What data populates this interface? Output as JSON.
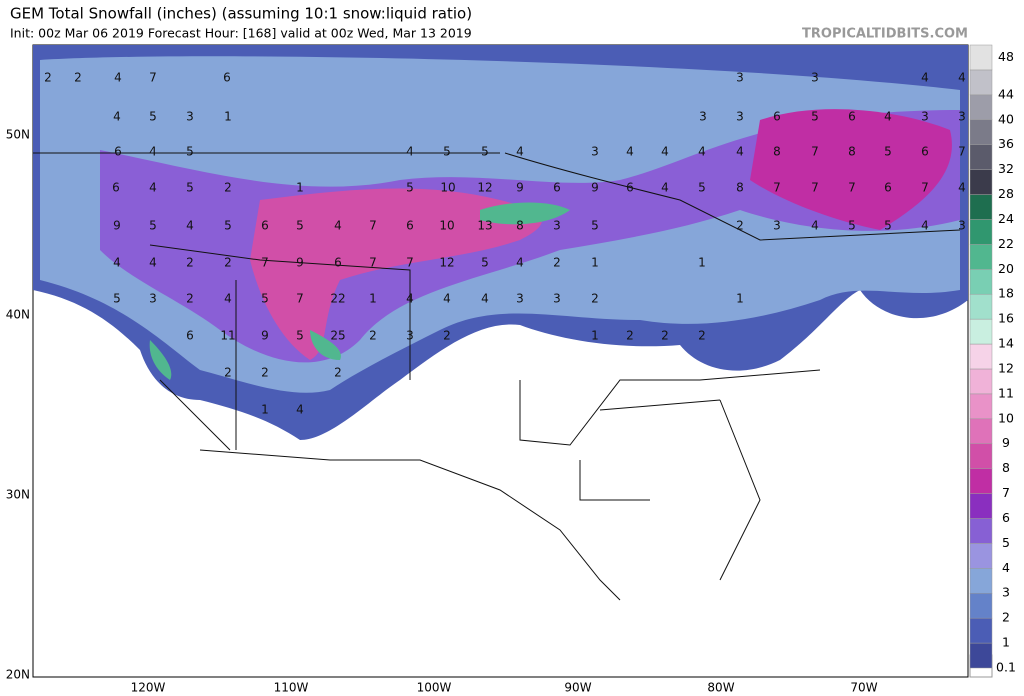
{
  "header": {
    "title": "GEM Total Snowfall (inches) (assuming 10:1 snow:liquid ratio)",
    "subtitle": "Init: 00z Mar 06 2019   Forecast Hour: [168]   valid at 00z Wed, Mar 13 2019",
    "brand": "TROPICALTIDBITS.COM"
  },
  "map": {
    "lat_labels": [
      "50N",
      "40N",
      "30N",
      "20N"
    ],
    "lon_labels": [
      "120W",
      "110W",
      "100W",
      "90W",
      "80W",
      "70W"
    ],
    "snowfall_labels": [
      [
        2,
        2,
        4,
        7,
        6,
        3,
        3,
        4,
        4
      ],
      [
        4,
        5,
        3,
        1,
        3,
        3,
        6,
        5,
        6,
        4,
        3,
        3
      ],
      [
        6,
        4,
        5,
        4,
        5,
        5,
        4,
        3,
        4,
        4,
        4,
        4,
        8,
        7,
        8,
        5,
        6,
        7
      ],
      [
        6,
        4,
        5,
        2,
        1,
        5,
        10,
        12,
        9,
        6,
        9,
        6,
        4,
        5,
        8,
        7,
        7,
        7,
        6,
        7,
        4
      ],
      [
        9,
        5,
        4,
        5,
        6,
        5,
        4,
        7,
        6,
        10,
        13,
        8,
        3,
        5,
        2,
        3,
        4,
        5,
        5,
        4,
        3
      ],
      [
        4,
        4,
        2,
        2,
        7,
        9,
        6,
        7,
        7,
        12,
        5,
        4,
        2,
        1,
        1
      ],
      [
        5,
        3,
        2,
        4,
        5,
        7,
        22,
        1,
        4,
        4,
        4,
        3,
        3,
        2,
        1
      ],
      [
        6,
        11,
        9,
        5,
        25,
        2,
        3,
        2,
        1,
        2,
        2,
        2
      ],
      [
        2,
        2,
        2
      ],
      [
        1,
        4
      ]
    ]
  },
  "colorbar": {
    "levels": [
      {
        "value": 0.1,
        "color": "#3d4899"
      },
      {
        "value": 1,
        "color": "#4b5db5"
      },
      {
        "value": 2,
        "color": "#6482c9"
      },
      {
        "value": 3,
        "color": "#86a6d9"
      },
      {
        "value": 4,
        "color": "#9a94e0"
      },
      {
        "value": 5,
        "color": "#8760d4"
      },
      {
        "value": 6,
        "color": "#8a2fbf"
      },
      {
        "value": 7,
        "color": "#c02ea4"
      },
      {
        "value": 8,
        "color": "#d14fa8"
      },
      {
        "value": 9,
        "color": "#df72b9"
      },
      {
        "value": 10,
        "color": "#e992c8"
      },
      {
        "value": 11,
        "color": "#f0b2d8"
      },
      {
        "value": 12,
        "color": "#f6d3e8"
      },
      {
        "value": 14,
        "color": "#c9efe0"
      },
      {
        "value": 16,
        "color": "#a1e0cc"
      },
      {
        "value": 18,
        "color": "#79cfb3"
      },
      {
        "value": 20,
        "color": "#51b78f"
      },
      {
        "value": 22,
        "color": "#30976f"
      },
      {
        "value": 24,
        "color": "#1e6e4f"
      },
      {
        "value": 28,
        "color": "#3b3b4b"
      },
      {
        "value": 32,
        "color": "#5b5b6b"
      },
      {
        "value": 36,
        "color": "#7b7b89"
      },
      {
        "value": 40,
        "color": "#9d9da9"
      },
      {
        "value": 44,
        "color": "#c1c1c9"
      },
      {
        "value": 48,
        "color": "#e2e2e2"
      }
    ]
  }
}
